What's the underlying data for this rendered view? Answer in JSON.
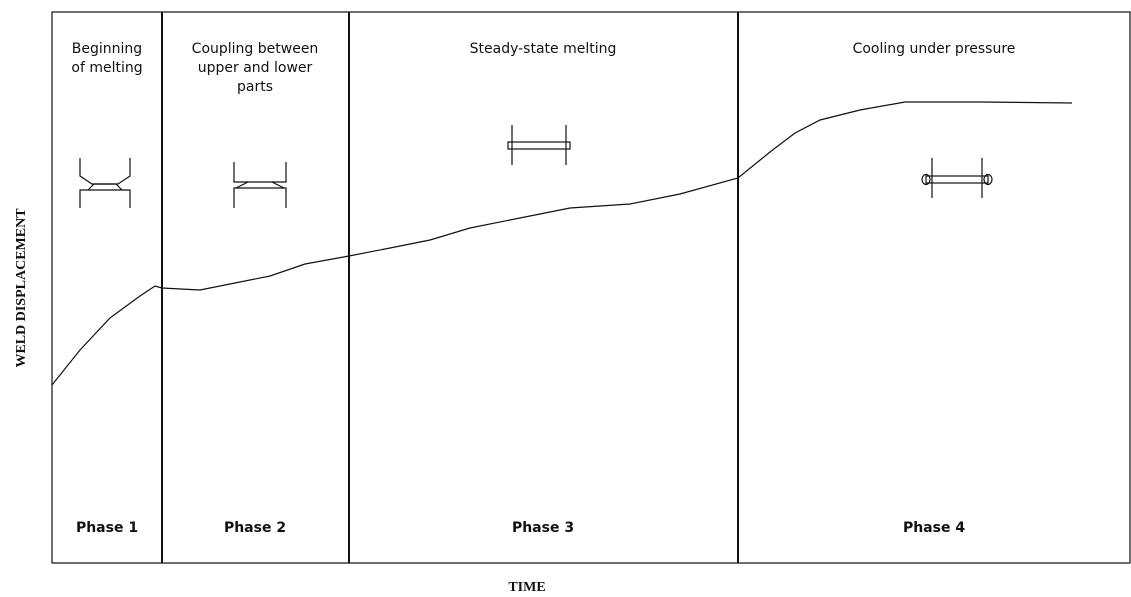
{
  "axes": {
    "y_label": "WELD DISPLACEMENT",
    "x_label": "TIME"
  },
  "phases": [
    {
      "title_lines": [
        "Beginning",
        "of melting"
      ],
      "label": "Phase 1"
    },
    {
      "title_lines": [
        "Coupling between",
        "upper and lower",
        "parts"
      ],
      "label": "Phase 2"
    },
    {
      "title_lines": [
        "Steady-state melting"
      ],
      "label": "Phase 3"
    },
    {
      "title_lines": [
        "Cooling under pressure"
      ],
      "label": "Phase 4"
    }
  ]
}
